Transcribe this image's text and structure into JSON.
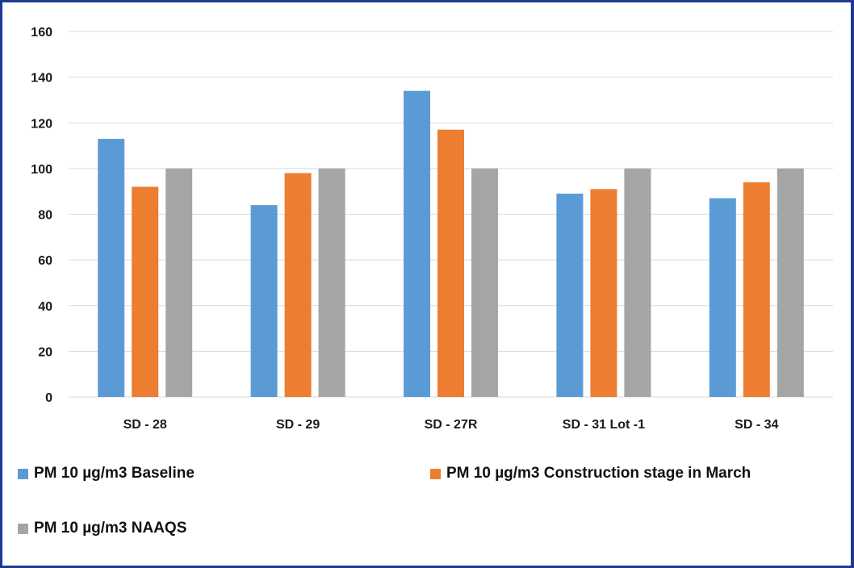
{
  "chart_data": {
    "type": "bar",
    "categories": [
      "SD - 28",
      "SD - 29",
      "SD - 27R",
      "SD - 31 Lot -1",
      "SD - 34"
    ],
    "series": [
      {
        "name": "PM 10  µg/m3 Baseline",
        "color": "#5b9bd5",
        "values": [
          113,
          84,
          134,
          89,
          87
        ]
      },
      {
        "name": "PM 10  µg/m3 Construction stage  in March",
        "color": "#ed7d31",
        "values": [
          92,
          98,
          117,
          91,
          94
        ]
      },
      {
        "name": "PM 10  µg/m3 NAAQS",
        "color": "#a5a5a5",
        "values": [
          100,
          100,
          100,
          100,
          100
        ]
      }
    ],
    "ylim": [
      0,
      160
    ],
    "yticks": [
      0,
      20,
      40,
      60,
      80,
      100,
      120,
      140,
      160
    ],
    "grid": true,
    "legend_position": "bottom"
  },
  "colors": {
    "frame": "#1f3a93",
    "grid": "#d9d9d9"
  }
}
